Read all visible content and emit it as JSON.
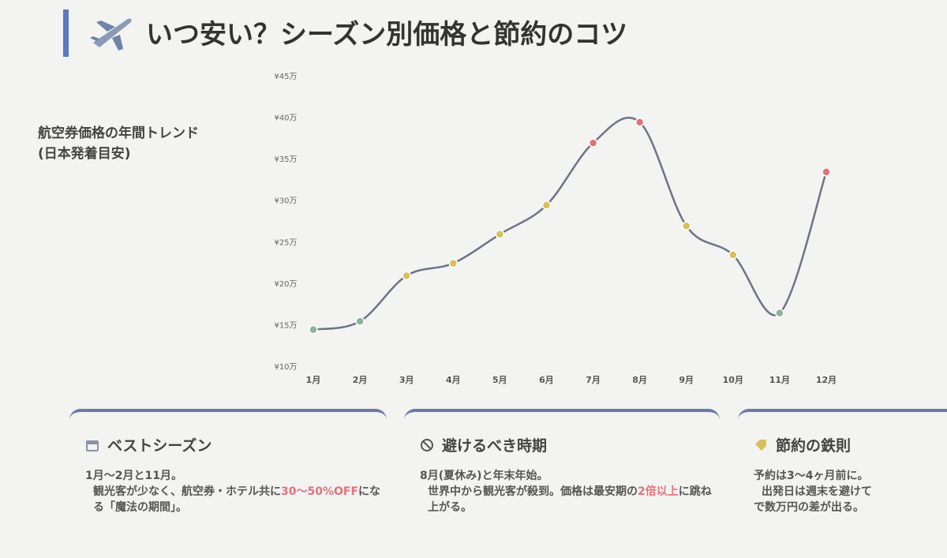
{
  "header": {
    "title": "いつ安い？シーズン別価格と節約のコツ"
  },
  "chart_data": {
    "type": "line",
    "title": [
      "航空券価格の年間トレンド",
      "(日本発着目安)"
    ],
    "categories": [
      "1月",
      "2月",
      "3月",
      "4月",
      "5月",
      "6月",
      "7月",
      "8月",
      "9月",
      "10月",
      "11月",
      "12月"
    ],
    "series": [
      {
        "color": "#6e7487",
        "values": [
          14.5,
          15.5,
          21,
          22.5,
          26,
          29.5,
          37,
          39.5,
          27,
          23.5,
          16.5,
          33.5
        ],
        "point_colors": [
          "#8fb29c",
          "#8fb29c",
          "#d9bf5a",
          "#d9bf5a",
          "#d9bf5a",
          "#d9bf5a",
          "#e0737a",
          "#e0737a",
          "#d9bf5a",
          "#d9bf5a",
          "#8fb29c",
          "#e0737a"
        ]
      }
    ],
    "ylim": [
      10,
      45
    ],
    "yticks": [
      {
        "value": 10,
        "label": "¥10万"
      },
      {
        "value": 15,
        "label": "¥15万"
      },
      {
        "value": 20,
        "label": "¥20万"
      },
      {
        "value": 25,
        "label": "¥25万"
      },
      {
        "value": 30,
        "label": "¥30万"
      },
      {
        "value": 35,
        "label": "¥35万"
      },
      {
        "value": 40,
        "label": "¥40万"
      },
      {
        "value": 45,
        "label": "¥45万"
      }
    ],
    "grid": false,
    "smooth": true
  },
  "cards": [
    {
      "title": "ベストシーズン",
      "lines": [
        [
          "1月〜2月と11月。"
        ],
        [
          "観光客が少なく、航空券・ホテル共に",
          "30〜50%OFF",
          "になる「魔法の期間」。"
        ]
      ]
    },
    {
      "title": "避けるべき時期",
      "lines": [
        [
          "8月(夏休み)と年末年始。"
        ],
        [
          "世界中から観光客が殺到。価格は最安期の",
          "2倍以上",
          "に跳ね上がる。"
        ]
      ]
    },
    {
      "title": "節約の鉄則",
      "lines": [
        [
          "予約は3〜4ヶ月前に。"
        ],
        [
          "出発日は週末を避けて"
        ],
        [
          "で数万円の差が出る。"
        ]
      ]
    }
  ]
}
